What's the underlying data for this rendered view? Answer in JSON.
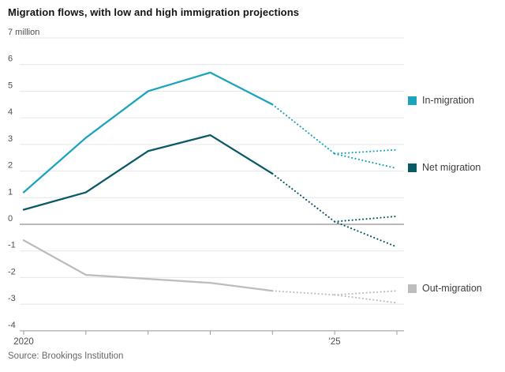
{
  "chart_data": {
    "type": "line",
    "title": "Migration flows, with low and high immigration projections",
    "source": "Source: Brookings Institution",
    "xlabel": "",
    "ylabel": "million",
    "xlim": [
      2020,
      2026
    ],
    "ylim": [
      -4,
      7
    ],
    "grid": "horizontal",
    "legend_position": "right",
    "y_ticks": [
      {
        "value": 7,
        "label": "7 million"
      },
      {
        "value": 6,
        "label": "6"
      },
      {
        "value": 5,
        "label": "5"
      },
      {
        "value": 4,
        "label": "4"
      },
      {
        "value": 3,
        "label": "3"
      },
      {
        "value": 2,
        "label": "2"
      },
      {
        "value": 1,
        "label": "1"
      },
      {
        "value": 0,
        "label": "0"
      },
      {
        "value": -1,
        "label": "-1"
      },
      {
        "value": -2,
        "label": "-2"
      },
      {
        "value": -3,
        "label": "-3"
      },
      {
        "value": -4,
        "label": "-4"
      }
    ],
    "x_ticks": [
      {
        "value": 2020,
        "label": "2020"
      },
      {
        "value": 2021,
        "label": ""
      },
      {
        "value": 2022,
        "label": ""
      },
      {
        "value": 2023,
        "label": ""
      },
      {
        "value": 2024,
        "label": ""
      },
      {
        "value": 2025,
        "label": "'25"
      },
      {
        "value": 2026,
        "label": ""
      }
    ],
    "series": [
      {
        "name": "In-migration",
        "color": "#1CA4BE",
        "observed": {
          "x": [
            2020,
            2021,
            2022,
            2023,
            2024
          ],
          "y": [
            1.2,
            3.25,
            5.0,
            5.7,
            4.5
          ]
        },
        "projection_base": {
          "x": [
            2024,
            2025
          ],
          "y": [
            4.5,
            2.65
          ]
        },
        "projection_high": {
          "x": [
            2025,
            2026
          ],
          "y": [
            2.65,
            2.8
          ]
        },
        "projection_low": {
          "x": [
            2025,
            2026
          ],
          "y": [
            2.65,
            2.1
          ]
        }
      },
      {
        "name": "Net migration",
        "color": "#0A5A66",
        "observed": {
          "x": [
            2020,
            2021,
            2022,
            2023,
            2024
          ],
          "y": [
            0.55,
            1.2,
            2.75,
            3.35,
            1.9
          ]
        },
        "projection_base": {
          "x": [
            2024,
            2025
          ],
          "y": [
            1.9,
            0.1
          ]
        },
        "projection_high": {
          "x": [
            2025,
            2026
          ],
          "y": [
            0.1,
            0.3
          ]
        },
        "projection_low": {
          "x": [
            2025,
            2026
          ],
          "y": [
            0.1,
            -0.85
          ]
        }
      },
      {
        "name": "Out-migration",
        "color": "#BDBDBD",
        "observed": {
          "x": [
            2020,
            2021,
            2022,
            2023,
            2024
          ],
          "y": [
            -0.6,
            -1.9,
            -2.05,
            -2.2,
            -2.5
          ]
        },
        "projection_base": {
          "x": [
            2024,
            2025
          ],
          "y": [
            -2.5,
            -2.65
          ]
        },
        "projection_high": {
          "x": [
            2025,
            2026
          ],
          "y": [
            -2.65,
            -2.5
          ]
        },
        "projection_low": {
          "x": [
            2025,
            2026
          ],
          "y": [
            -2.65,
            -2.95
          ]
        }
      }
    ],
    "style_colors": {
      "grid": "#e6e6e6",
      "zero_line": "#8f8f8f",
      "axis": "#9a9a9a",
      "tick_label": "#4d4d4d",
      "title": "#141414",
      "legend_text": "#3d3d3d",
      "source_text": "#666666"
    }
  }
}
